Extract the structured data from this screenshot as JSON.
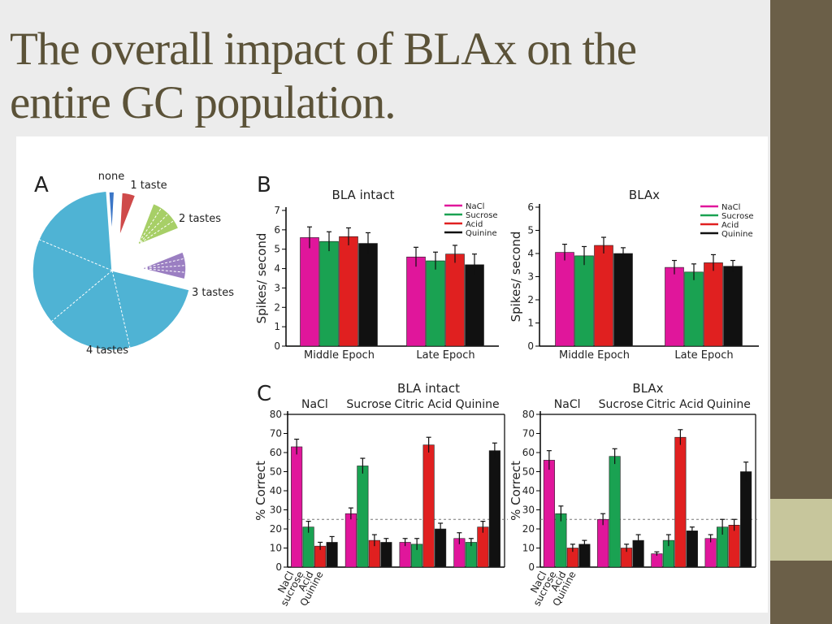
{
  "slide": {
    "title_line1": "The overall impact of BLAx on the",
    "title_line2": "entire GC population."
  },
  "colors": {
    "sidebar": "#6b5f48",
    "sidebar_accent": "#c7c69c",
    "title": "#5b5238",
    "NaCl": "#e0169b",
    "Sucrose": "#1aa252",
    "Acid": "#e02020",
    "Quinine": "#111111"
  },
  "legend": [
    "NaCl",
    "Sucrose",
    "Acid",
    "Quinine"
  ],
  "chart_data": [
    {
      "panel": "A",
      "type": "pie",
      "labels": [
        "none",
        "1 taste",
        "2 tastes",
        "3 tastes",
        "4 tastes"
      ],
      "values": [
        2,
        5,
        13,
        10,
        70
      ],
      "colors": [
        "#3b76c7",
        "#cf4a4a",
        "#a7cf67",
        "#9b7fc2",
        "#4fb3d4"
      ]
    },
    {
      "panel": "B",
      "type": "bar",
      "title": "BLA intact",
      "ylabel": "Spikes/ second",
      "categories": [
        "Middle Epoch",
        "Late Epoch"
      ],
      "ylim": [
        0,
        7
      ],
      "yticks": [
        0,
        1,
        2,
        3,
        4,
        5,
        6,
        7
      ],
      "series": [
        {
          "name": "NaCl",
          "values": [
            5.6,
            4.6
          ],
          "errors": [
            0.55,
            0.5
          ]
        },
        {
          "name": "Sucrose",
          "values": [
            5.4,
            4.4
          ],
          "errors": [
            0.5,
            0.45
          ]
        },
        {
          "name": "Acid",
          "values": [
            5.65,
            4.75
          ],
          "errors": [
            0.45,
            0.45
          ]
        },
        {
          "name": "Quinine",
          "values": [
            5.3,
            4.2
          ],
          "errors": [
            0.55,
            0.55
          ]
        }
      ]
    },
    {
      "panel": "B",
      "type": "bar",
      "title": "BLAx",
      "ylabel": "Spikes/ second",
      "categories": [
        "Middle Epoch",
        "Late Epoch"
      ],
      "ylim": [
        0,
        6
      ],
      "yticks": [
        0,
        1,
        2,
        3,
        4,
        5,
        6
      ],
      "series": [
        {
          "name": "NaCl",
          "values": [
            4.05,
            3.4
          ],
          "errors": [
            0.35,
            0.3
          ]
        },
        {
          "name": "Sucrose",
          "values": [
            3.9,
            3.2
          ],
          "errors": [
            0.4,
            0.35
          ]
        },
        {
          "name": "Acid",
          "values": [
            4.35,
            3.6
          ],
          "errors": [
            0.35,
            0.35
          ]
        },
        {
          "name": "Quinine",
          "values": [
            4.0,
            3.45
          ],
          "errors": [
            0.25,
            0.25
          ]
        }
      ]
    },
    {
      "panel": "C",
      "type": "bar",
      "title": "BLA intact",
      "ylabel": "% Correct",
      "categories": [
        "NaCl",
        "Sucrose",
        "Citric Acid",
        "Quinine"
      ],
      "xticklabels": [
        "NaCl",
        "sucrose",
        "Acid",
        "Quinine"
      ],
      "ylim": [
        0,
        80
      ],
      "yticks": [
        0,
        10,
        20,
        30,
        40,
        50,
        60,
        70,
        80
      ],
      "chance": 25,
      "series": [
        {
          "name": "NaCl",
          "values": [
            63,
            28,
            13,
            15
          ],
          "errors": [
            4,
            3,
            2,
            3
          ]
        },
        {
          "name": "Sucrose",
          "values": [
            21,
            53,
            12,
            13
          ],
          "errors": [
            3,
            4,
            3,
            2
          ]
        },
        {
          "name": "Acid",
          "values": [
            11,
            14,
            64,
            21
          ],
          "errors": [
            2,
            3,
            4,
            3
          ]
        },
        {
          "name": "Quinine",
          "values": [
            13,
            13,
            20,
            61
          ],
          "errors": [
            3,
            2,
            3,
            4
          ]
        }
      ]
    },
    {
      "panel": "C",
      "type": "bar",
      "title": "BLAx",
      "ylabel": "% Correct",
      "categories": [
        "NaCl",
        "Sucrose",
        "Citric Acid",
        "Quinine"
      ],
      "xticklabels": [
        "NaCl",
        "sucrose",
        "Acid",
        "Quinine"
      ],
      "ylim": [
        0,
        80
      ],
      "yticks": [
        0,
        10,
        20,
        30,
        40,
        50,
        60,
        70,
        80
      ],
      "chance": 25,
      "series": [
        {
          "name": "NaCl",
          "values": [
            56,
            25,
            7,
            15
          ],
          "errors": [
            5,
            3,
            1,
            2
          ]
        },
        {
          "name": "Sucrose",
          "values": [
            28,
            58,
            14,
            21
          ],
          "errors": [
            4,
            4,
            3,
            4
          ]
        },
        {
          "name": "Acid",
          "values": [
            10,
            10,
            68,
            22
          ],
          "errors": [
            2,
            2,
            4,
            3
          ]
        },
        {
          "name": "Quinine",
          "values": [
            12,
            14,
            19,
            50
          ],
          "errors": [
            2,
            3,
            2,
            5
          ]
        }
      ]
    }
  ]
}
